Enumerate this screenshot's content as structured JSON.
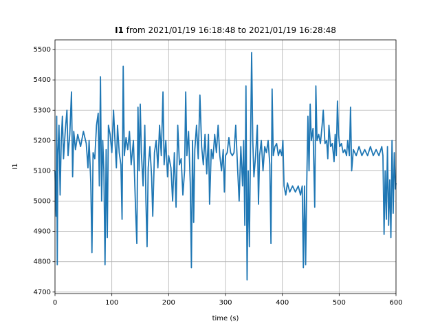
{
  "chart_data": {
    "type": "line",
    "title_bold": "I1",
    "title": "from 2021/01/19 16:18:48 to 2021/01/19 16:28:48",
    "x_label": "time (s)",
    "y_label": "I1",
    "color": "#1f77b4",
    "grid": true,
    "xlim": [
      0,
      600
    ],
    "ylim": [
      4695,
      5532
    ],
    "xticks": [
      0,
      100,
      200,
      300,
      400,
      500,
      600
    ],
    "yticks": [
      4700,
      4800,
      4900,
      5000,
      5100,
      5200,
      5300,
      5400,
      5500
    ],
    "x": [
      0,
      2,
      3,
      4,
      5,
      7,
      9,
      11,
      13,
      15,
      18,
      21,
      23,
      26,
      29,
      31,
      33,
      36,
      40,
      45,
      50,
      55,
      58,
      60,
      63,
      65,
      67,
      70,
      73,
      76,
      78,
      80,
      82,
      84,
      86,
      88,
      90,
      92,
      94,
      97,
      100,
      103,
      106,
      108,
      110,
      113,
      116,
      118,
      120,
      122,
      125,
      128,
      131,
      134,
      138,
      142,
      144,
      146,
      148,
      150,
      152,
      155,
      158,
      160,
      162,
      164,
      167,
      170,
      172,
      175,
      178,
      181,
      184,
      187,
      190,
      192,
      195,
      198,
      200,
      204,
      207,
      210,
      213,
      216,
      219,
      222,
      225,
      228,
      230,
      232,
      235,
      238,
      240,
      242,
      244,
      246,
      249,
      252,
      255,
      258,
      261,
      264,
      267,
      270,
      272,
      275,
      278,
      281,
      284,
      287,
      290,
      293,
      296,
      298,
      300,
      303,
      306,
      309,
      312,
      315,
      318,
      321,
      324,
      327,
      330,
      332,
      334,
      336,
      338,
      340,
      342,
      344,
      346,
      348,
      350,
      353,
      356,
      358,
      360,
      363,
      366,
      369,
      372,
      375,
      378,
      380,
      382,
      384,
      387,
      390,
      393,
      396,
      399,
      401,
      403,
      406,
      409,
      413,
      418,
      423,
      428,
      432,
      435,
      437,
      439,
      441,
      443,
      445,
      447,
      449,
      451,
      454,
      457,
      459,
      461,
      464,
      467,
      470,
      472,
      475,
      478,
      480,
      482,
      485,
      488,
      491,
      493,
      495,
      497,
      499,
      501,
      504,
      507,
      510,
      513,
      515,
      518,
      520,
      522,
      525,
      530,
      535,
      540,
      545,
      550,
      555,
      560,
      565,
      570,
      575,
      577,
      579,
      581,
      583,
      585,
      587,
      589,
      591,
      593,
      595,
      597,
      599,
      600
    ],
    "values": [
      5100,
      4950,
      5280,
      4790,
      5150,
      5250,
      5020,
      5200,
      5280,
      5140,
      5230,
      5300,
      5150,
      5220,
      5360,
      5080,
      5230,
      5170,
      5220,
      5180,
      5230,
      5190,
      5110,
      5200,
      5060,
      4830,
      5160,
      5140,
      5250,
      5290,
      5050,
      5410,
      5000,
      5200,
      5100,
      4790,
      5170,
      4880,
      5250,
      5220,
      5160,
      5300,
      5180,
      5110,
      5250,
      5160,
      5120,
      4940,
      5445,
      5150,
      5210,
      5170,
      5230,
      5120,
      5200,
      4960,
      4860,
      5310,
      5100,
      5320,
      5160,
      5050,
      5250,
      5000,
      4850,
      5110,
      5180,
      5080,
      4950,
      5160,
      5200,
      5110,
      5250,
      5150,
      5360,
      5120,
      5200,
      5080,
      5150,
      5110,
      5000,
      5160,
      4980,
      5250,
      5120,
      5140,
      5020,
      5100,
      5360,
      5150,
      5230,
      5060,
      4780,
      5200,
      4930,
      5170,
      5250,
      5140,
      5350,
      5180,
      5120,
      5220,
      5090,
      5220,
      4990,
      5170,
      5140,
      5220,
      5160,
      5250,
      5150,
      5100,
      5170,
      5030,
      5150,
      5160,
      5210,
      5160,
      5150,
      5160,
      5250,
      5120,
      5000,
      5180,
      5050,
      5200,
      4920,
      5380,
      4740,
      5100,
      4850,
      5180,
      5490,
      5200,
      5080,
      5150,
      5250,
      4990,
      5150,
      5200,
      5100,
      5180,
      5160,
      5200,
      5120,
      4860,
      5370,
      5150,
      5180,
      5190,
      5150,
      5170,
      5150,
      5200,
      5050,
      5020,
      5060,
      5030,
      5050,
      5030,
      5050,
      5020,
      5050,
      4780,
      5050,
      4790,
      5060,
      5280,
      5100,
      5320,
      5200,
      5240,
      4980,
      5380,
      5200,
      5220,
      5190,
      5250,
      5300,
      5190,
      5200,
      5140,
      5250,
      5180,
      5190,
      5130,
      5220,
      5150,
      5330,
      5220,
      5180,
      5190,
      5160,
      5170,
      5150,
      5200,
      5150,
      5310,
      5100,
      5170,
      5150,
      5180,
      5150,
      5170,
      5150,
      5180,
      5150,
      5170,
      5150,
      5180,
      5150,
      4890,
      5100,
      4940,
      5180,
      4920,
      5070,
      4880,
      5200,
      4960,
      5160,
      5040,
      5060
    ]
  }
}
